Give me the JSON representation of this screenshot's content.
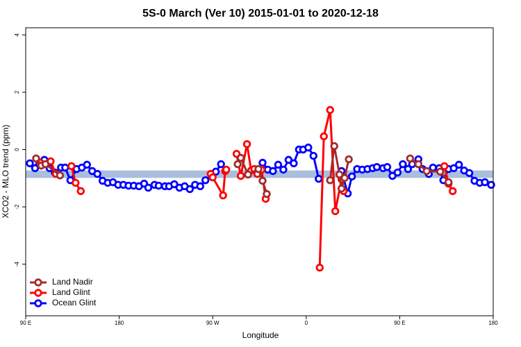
{
  "chart_data": {
    "type": "line",
    "title": "5S-0 March (Ver 10)   2015-01-01 to 2020-12-18",
    "x_label": "Longitude",
    "y_label": "XCO2 - MLO trend (ppm)",
    "xlim": [
      90,
      540
    ],
    "xticks": [
      {
        "value": 90,
        "label": "90 E"
      },
      {
        "value": 180,
        "label": "180"
      },
      {
        "value": 270,
        "label": "90 W"
      },
      {
        "value": 360,
        "label": "0"
      },
      {
        "value": 450,
        "label": "90 E"
      },
      {
        "value": 540,
        "label": "180"
      }
    ],
    "ylim": [
      -5.8,
      4.25
    ],
    "yticks": [
      -4,
      -2,
      0,
      2,
      4
    ],
    "reference_band": [
      -0.99,
      -0.73
    ],
    "band_color": "#a9bfdd",
    "legend": "bottom-left",
    "series": [
      {
        "name": "Land Nadir",
        "color": "#a52a2a",
        "x": [
          100,
          105,
          109,
          123,
          null,
          294,
          297,
          304,
          314,
          318,
          322,
          null,
          383,
          387,
          392,
          394,
          397,
          401,
          null,
          460,
          468,
          476,
          489,
          497
        ],
        "values": [
          -0.31,
          -0.56,
          -0.51,
          -0.9,
          null,
          -0.51,
          -0.29,
          -0.87,
          -0.68,
          -1.09,
          -1.55,
          null,
          -1.07,
          0.12,
          -0.87,
          -1.36,
          -0.99,
          -0.34,
          null,
          -0.31,
          -0.51,
          -0.75,
          -0.77,
          -1.14
        ]
      },
      {
        "name": "Land Glint",
        "color": "#ff0000",
        "x": [
          104,
          109,
          114,
          119,
          null,
          134,
          138,
          143,
          null,
          268,
          270,
          280,
          282,
          283,
          null,
          293,
          297,
          303,
          307,
          310,
          313,
          317,
          321,
          null,
          373,
          377,
          383,
          388,
          394,
          396,
          null,
          493,
          497,
          501
        ],
        "values": [
          -0.46,
          -0.51,
          -0.41,
          -0.85,
          null,
          -0.58,
          -1.16,
          -1.45,
          null,
          -0.85,
          -0.97,
          -1.6,
          -0.75,
          -0.7,
          null,
          -0.15,
          -0.92,
          0.19,
          -0.73,
          -0.68,
          -0.85,
          -0.7,
          -1.72,
          null,
          -4.12,
          0.46,
          1.38,
          -2.15,
          -1.04,
          -1.45,
          null,
          -0.58,
          -1.19,
          -1.45
        ]
      },
      {
        "name": "Ocean Glint",
        "color": "#0000ff",
        "x": [
          94,
          99,
          103,
          108,
          113,
          118,
          124,
          128,
          133,
          139,
          144,
          149,
          154,
          159,
          164,
          169,
          174,
          179,
          184,
          189,
          194,
          199,
          204,
          208,
          214,
          218,
          224,
          228,
          233,
          238,
          243,
          248,
          253,
          258,
          263,
          269,
          273,
          278,
          null,
          318,
          323,
          328,
          333,
          338,
          343,
          348,
          353,
          357,
          362,
          367,
          372,
          null,
          394,
          400,
          404,
          409,
          414,
          419,
          424,
          428,
          434,
          438,
          443,
          448,
          453,
          458,
          462,
          468,
          472,
          478,
          482,
          488,
          492,
          497,
          502,
          507,
          512,
          517,
          522,
          527,
          532,
          538
        ],
        "values": [
          -0.48,
          -0.65,
          -0.51,
          -0.36,
          -0.65,
          -0.8,
          -0.63,
          -0.63,
          -1.07,
          -0.68,
          -0.63,
          -0.53,
          -0.75,
          -0.85,
          -1.09,
          -1.16,
          -1.14,
          -1.23,
          -1.23,
          -1.26,
          -1.26,
          -1.28,
          -1.19,
          -1.33,
          -1.23,
          -1.26,
          -1.28,
          -1.28,
          -1.21,
          -1.33,
          -1.28,
          -1.38,
          -1.23,
          -1.28,
          -1.07,
          -0.94,
          -0.77,
          -0.51,
          null,
          -0.46,
          -0.7,
          -0.75,
          -0.53,
          -0.7,
          -0.36,
          -0.48,
          0,
          0,
          0.07,
          -0.22,
          -1.02,
          null,
          -0.75,
          -1.53,
          -0.94,
          -0.68,
          -0.7,
          -0.68,
          -0.65,
          -0.61,
          -0.65,
          -0.61,
          -0.92,
          -0.8,
          -0.51,
          -0.68,
          -0.51,
          -0.34,
          -0.68,
          -0.85,
          -0.63,
          -0.65,
          -1.07,
          -0.68,
          -0.65,
          -0.53,
          -0.73,
          -0.82,
          -1.09,
          -1.16,
          -1.14,
          -1.23
        ]
      }
    ]
  }
}
